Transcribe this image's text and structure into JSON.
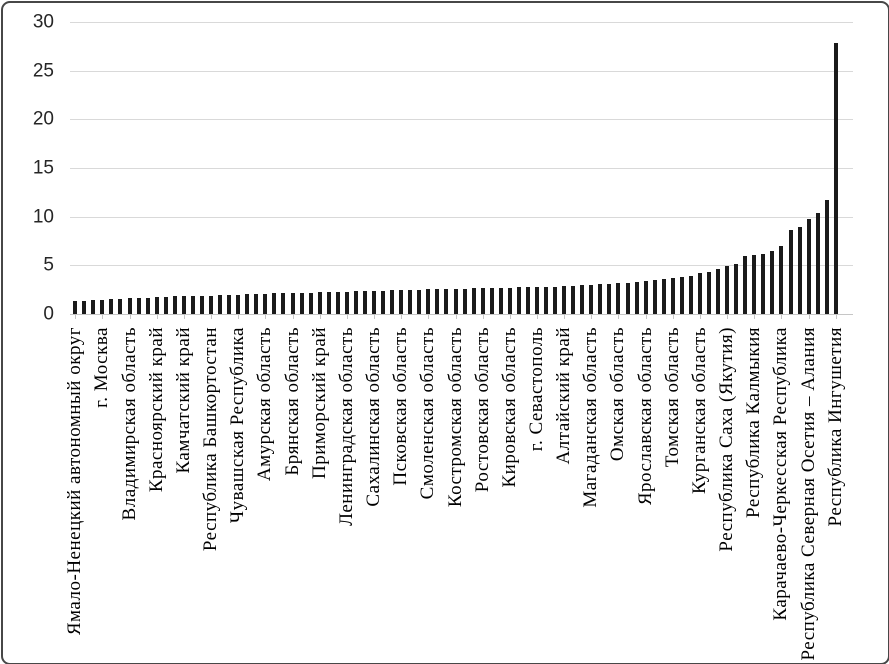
{
  "chart_data": {
    "type": "bar",
    "title": "",
    "xlabel": "",
    "ylabel": "",
    "ylim": [
      0,
      30
    ],
    "yticks": [
      0,
      5,
      10,
      15,
      20,
      25,
      30
    ],
    "grid": "horizontal",
    "legend": "none",
    "bar_color": "#1a1a1a",
    "gridline_color": "#d9d9d9",
    "axis_color": "#c6c6c6",
    "tick_label_color": "#262626",
    "category_label_color": "#000000",
    "label_interval": 3,
    "categories_labeled": [
      "Ямало-Ненецкий автономный округ",
      "г. Москва",
      "Владимирская область",
      "Красноярский край",
      "Камчатский край",
      "Республика Башкортостан",
      "Чувашская Республика",
      "Амурская область",
      "Брянская область",
      "Приморский край",
      "Ленинградская область",
      "Сахалинская область",
      "Псковская область",
      "Смоленская область",
      "Костромская область",
      "Ростовская область",
      "Кировская область",
      "г. Севастополь",
      "Алтайский край",
      "Магаданская область",
      "Омская область",
      "Ярославская область",
      "Томская область",
      "Курганская область",
      "Республика Саха (Якутия)",
      "Республика Калмыкия",
      "Карачаево-Черкесская Республика",
      "Республика Северная Осетия – Алания",
      "Республика Ингушетия"
    ],
    "values": [
      1.3,
      1.35,
      1.4,
      1.45,
      1.5,
      1.55,
      1.6,
      1.6,
      1.65,
      1.7,
      1.75,
      1.8,
      1.8,
      1.85,
      1.9,
      1.9,
      1.95,
      2.0,
      2.0,
      2.05,
      2.1,
      2.1,
      2.15,
      2.15,
      2.2,
      2.2,
      2.2,
      2.25,
      2.25,
      2.3,
      2.3,
      2.35,
      2.35,
      2.4,
      2.4,
      2.45,
      2.45,
      2.5,
      2.5,
      2.55,
      2.55,
      2.6,
      2.6,
      2.6,
      2.65,
      2.65,
      2.7,
      2.7,
      2.7,
      2.75,
      2.75,
      2.75,
      2.8,
      2.8,
      2.85,
      2.9,
      2.95,
      3.0,
      3.05,
      3.1,
      3.15,
      3.2,
      3.3,
      3.35,
      3.45,
      3.55,
      3.65,
      3.8,
      3.95,
      4.2,
      4.3,
      4.6,
      4.9,
      5.1,
      6.0,
      6.1,
      6.2,
      6.5,
      7.0,
      8.6,
      8.9,
      9.8,
      10.4,
      11.7,
      27.8
    ]
  }
}
